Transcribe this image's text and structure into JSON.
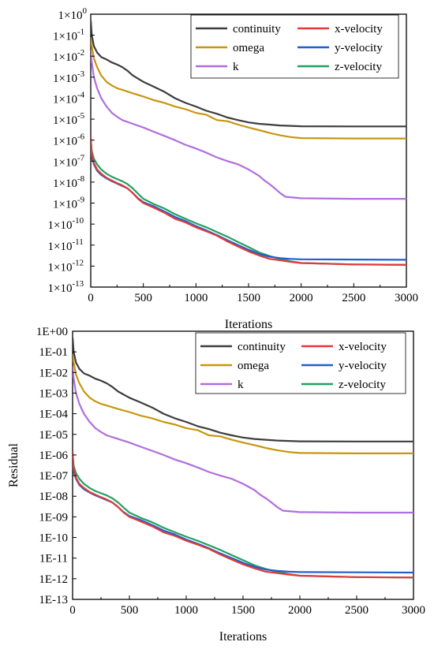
{
  "chart_data": [
    {
      "type": "line",
      "xlabel": "Iterations",
      "ylabel": "",
      "xlim": [
        0,
        3000
      ],
      "ylim_log10": [
        -13,
        0
      ],
      "y_scale": "log",
      "y_tick_format": "power",
      "x_ticks": [
        "0",
        "500",
        "1000",
        "1500",
        "2000",
        "2500",
        "3000"
      ],
      "y_ticks": [
        {
          "base": "1×10",
          "exp": "0"
        },
        {
          "base": "1×10",
          "exp": "-1"
        },
        {
          "base": "1×10",
          "exp": "-2"
        },
        {
          "base": "1×10",
          "exp": "-3"
        },
        {
          "base": "1×10",
          "exp": "-4"
        },
        {
          "base": "1×10",
          "exp": "-5"
        },
        {
          "base": "1×10",
          "exp": "-6"
        },
        {
          "base": "1×10",
          "exp": "-7"
        },
        {
          "base": "1×10",
          "exp": "-8"
        },
        {
          "base": "1×10",
          "exp": "-9"
        },
        {
          "base": "1×10",
          "exp": "-10"
        },
        {
          "base": "1×10",
          "exp": "-11"
        },
        {
          "base": "1×10",
          "exp": "-12"
        },
        {
          "base": "1×10",
          "exp": "-13"
        }
      ],
      "legend": [
        "continuity",
        "x-velocity",
        "omega",
        "y-velocity",
        "k",
        "z-velocity"
      ],
      "legend_position": "top-right",
      "series": [
        {
          "name": "continuity",
          "color": "#3d3d3d",
          "x": [
            0,
            10,
            30,
            60,
            100,
            150,
            200,
            250,
            300,
            350,
            400,
            500,
            600,
            700,
            800,
            900,
            1000,
            1100,
            1200,
            1300,
            1400,
            1500,
            1600,
            1700,
            1800,
            1900,
            2000,
            2500,
            3000
          ],
          "y": [
            "5E-01",
            "1E-01",
            "3E-02",
            "1.5E-02",
            "9E-03",
            "7E-03",
            "5E-03",
            "4E-03",
            "3E-03",
            "2E-03",
            "1.2E-03",
            "6E-04",
            "3.5E-04",
            "2E-04",
            "1E-04",
            "6E-05",
            "4E-05",
            "2.5E-05",
            "1.8E-05",
            "1.2E-05",
            "9E-06",
            "7E-06",
            "6E-06",
            "5.5E-06",
            "5E-06",
            "4.8E-06",
            "4.6E-06",
            "4.5E-06",
            "4.5E-06"
          ]
        },
        {
          "name": "omega",
          "color": "#c8960f",
          "x": [
            0,
            10,
            30,
            60,
            100,
            150,
            200,
            250,
            300,
            400,
            500,
            600,
            700,
            800,
            900,
            1000,
            1100,
            1150,
            1200,
            1300,
            1400,
            1500,
            1600,
            1700,
            1800,
            1900,
            2000,
            2500,
            3000
          ],
          "y": [
            "8E-02",
            "3E-02",
            "8E-03",
            "3E-03",
            "1.2E-03",
            "6E-04",
            "4E-04",
            "3E-04",
            "2.5E-04",
            "1.7E-04",
            "1.2E-04",
            "8E-05",
            "6E-05",
            "4E-05",
            "3E-05",
            "2E-05",
            "1.6E-05",
            "1.2E-05",
            "9E-06",
            "8E-06",
            "5.5E-06",
            "4E-06",
            "3E-06",
            "2.2E-06",
            "1.7E-06",
            "1.4E-06",
            "1.25E-06",
            "1.2E-06",
            "1.2E-06"
          ]
        },
        {
          "name": "k",
          "color": "#b06ee0",
          "x": [
            0,
            10,
            30,
            60,
            100,
            150,
            200,
            250,
            300,
            400,
            500,
            600,
            700,
            800,
            900,
            1000,
            1100,
            1200,
            1300,
            1400,
            1500,
            1600,
            1650,
            1700,
            1750,
            1800,
            1850,
            2000,
            2500,
            3000
          ],
          "y": [
            "2E-02",
            "5E-03",
            "1E-03",
            "3E-04",
            "1E-04",
            "4E-05",
            "2E-05",
            "1.3E-05",
            "9E-06",
            "6E-06",
            "4E-06",
            "2.5E-06",
            "1.6E-06",
            "1E-06",
            "6E-07",
            "4E-07",
            "2.5E-07",
            "1.5E-07",
            "1E-07",
            "7E-08",
            "4E-08",
            "2E-08",
            "1.2E-08",
            "8E-09",
            "5E-09",
            "3E-09",
            "2E-09",
            "1.7E-09",
            "1.6E-09",
            "1.6E-09"
          ]
        },
        {
          "name": "x-velocity",
          "color": "#e03a3a",
          "x": [
            0,
            10,
            30,
            60,
            100,
            150,
            200,
            250,
            300,
            350,
            400,
            450,
            500,
            600,
            700,
            800,
            900,
            1000,
            1100,
            1200,
            1300,
            1400,
            1500,
            1600,
            1700,
            1800,
            1900,
            2000,
            2500,
            3000
          ],
          "y": [
            "1.5E-06",
            "2E-07",
            "8E-08",
            "4E-08",
            "2.5E-08",
            "1.6E-08",
            "1.2E-08",
            "9E-09",
            "7E-09",
            "5E-09",
            "3E-09",
            "1.6E-09",
            "1E-09",
            "6E-10",
            "3.5E-10",
            "1.8E-10",
            "1.2E-10",
            "7E-11",
            "4.5E-11",
            "2.8E-11",
            "1.5E-11",
            "8.5E-12",
            "5E-12",
            "3.2E-12",
            "2.2E-12",
            "1.9E-12",
            "1.6E-12",
            "1.4E-12",
            "1.2E-12",
            "1.15E-12"
          ]
        },
        {
          "name": "y-velocity",
          "color": "#1f5fd0",
          "x": [
            0,
            10,
            30,
            60,
            100,
            150,
            200,
            250,
            300,
            350,
            400,
            450,
            500,
            600,
            700,
            800,
            900,
            1000,
            1100,
            1200,
            1300,
            1400,
            1500,
            1600,
            1700,
            1800,
            1900,
            2000,
            2500,
            3000
          ],
          "y": [
            "1.2E-06",
            "1.5E-07",
            "7E-08",
            "3.5E-08",
            "2.2E-08",
            "1.5E-08",
            "1.1E-08",
            "8.5E-09",
            "6.5E-09",
            "5E-09",
            "3E-09",
            "1.7E-09",
            "1.1E-09",
            "7E-10",
            "4E-10",
            "2.2E-10",
            "1.4E-10",
            "8E-11",
            "5E-11",
            "3E-11",
            "1.7E-11",
            "1E-11",
            "6E-12",
            "3.8E-12",
            "2.8E-12",
            "2.4E-12",
            "2.2E-12",
            "2.1E-12",
            "2.05E-12",
            "2E-12"
          ]
        },
        {
          "name": "z-velocity",
          "color": "#22a060",
          "x": [
            0,
            10,
            30,
            60,
            100,
            150,
            200,
            250,
            300,
            350,
            400,
            450,
            500,
            600,
            700,
            800,
            900,
            1000,
            1100,
            1200,
            1300,
            1400,
            1500,
            1600,
            1700,
            1800,
            1900,
            2000,
            2500,
            3000
          ],
          "y": [
            "1E-06",
            "3E-07",
            "1.3E-07",
            "7E-08",
            "4E-08",
            "2.5E-08",
            "1.8E-08",
            "1.4E-08",
            "1.1E-08",
            "8E-09",
            "5E-09",
            "2.8E-09",
            "1.6E-09",
            "9E-10",
            "5.5E-10",
            "3E-10",
            "1.8E-10",
            "1.1E-10",
            "7E-11",
            "4.2E-11",
            "2.5E-11",
            "1.4E-11",
            "8E-12",
            "4.5E-12",
            "3E-12",
            "2.2E-12",
            "1.7E-12",
            "1.4E-12",
            "1.2E-12",
            "1.15E-12"
          ]
        }
      ]
    },
    {
      "type": "line",
      "xlabel": "Iterations",
      "ylabel": "Residual",
      "xlim": [
        0,
        3000
      ],
      "ylim_log10": [
        -13,
        0
      ],
      "y_scale": "log",
      "y_tick_format": "scientific",
      "x_ticks": [
        "0",
        "500",
        "1000",
        "1500",
        "2000",
        "2500",
        "3000"
      ],
      "y_ticks": [
        "1E+00",
        "1E-01",
        "1E-02",
        "1E-03",
        "1E-04",
        "1E-05",
        "1E-06",
        "1E-07",
        "1E-08",
        "1E-09",
        "1E-10",
        "1E-11",
        "1E-12",
        "1E-13"
      ],
      "legend": [
        "continuity",
        "x-velocity",
        "omega",
        "y-velocity",
        "k",
        "z-velocity"
      ],
      "legend_position": "top-right",
      "series": [
        {
          "name": "continuity",
          "color": "#3d3d3d",
          "x": [
            0,
            10,
            30,
            60,
            100,
            150,
            200,
            250,
            300,
            350,
            400,
            500,
            600,
            700,
            800,
            900,
            1000,
            1100,
            1200,
            1300,
            1400,
            1500,
            1600,
            1700,
            1800,
            1900,
            2000,
            2500,
            3000
          ],
          "y": [
            "5E-01",
            "1E-01",
            "3E-02",
            "1.5E-02",
            "9E-03",
            "7E-03",
            "5E-03",
            "4E-03",
            "3E-03",
            "2E-03",
            "1.2E-03",
            "6E-04",
            "3.5E-04",
            "2E-04",
            "1E-04",
            "6E-05",
            "4E-05",
            "2.5E-05",
            "1.8E-05",
            "1.2E-05",
            "9E-06",
            "7E-06",
            "6E-06",
            "5.5E-06",
            "5E-06",
            "4.8E-06",
            "4.6E-06",
            "4.5E-06",
            "4.5E-06"
          ]
        },
        {
          "name": "omega",
          "color": "#c8960f",
          "x": [
            0,
            10,
            30,
            60,
            100,
            150,
            200,
            250,
            300,
            400,
            500,
            600,
            700,
            800,
            900,
            1000,
            1100,
            1150,
            1200,
            1300,
            1400,
            1500,
            1600,
            1700,
            1800,
            1900,
            2000,
            2500,
            3000
          ],
          "y": [
            "8E-02",
            "3E-02",
            "8E-03",
            "3E-03",
            "1.2E-03",
            "6E-04",
            "4E-04",
            "3E-04",
            "2.5E-04",
            "1.7E-04",
            "1.2E-04",
            "8E-05",
            "6E-05",
            "4E-05",
            "3E-05",
            "2E-05",
            "1.6E-05",
            "1.2E-05",
            "9E-06",
            "8E-06",
            "5.5E-06",
            "4E-06",
            "3E-06",
            "2.2E-06",
            "1.7E-06",
            "1.4E-06",
            "1.25E-06",
            "1.2E-06",
            "1.2E-06"
          ]
        },
        {
          "name": "k",
          "color": "#b06ee0",
          "x": [
            0,
            10,
            30,
            60,
            100,
            150,
            200,
            250,
            300,
            400,
            500,
            600,
            700,
            800,
            900,
            1000,
            1100,
            1200,
            1300,
            1400,
            1500,
            1600,
            1650,
            1700,
            1750,
            1800,
            1850,
            2000,
            2500,
            3000
          ],
          "y": [
            "2E-02",
            "5E-03",
            "1E-03",
            "3E-04",
            "1E-04",
            "4E-05",
            "2E-05",
            "1.3E-05",
            "9E-06",
            "6E-06",
            "4E-06",
            "2.5E-06",
            "1.6E-06",
            "1E-06",
            "6E-07",
            "4E-07",
            "2.5E-07",
            "1.5E-07",
            "1E-07",
            "7E-08",
            "4E-08",
            "2E-08",
            "1.2E-08",
            "8E-09",
            "5E-09",
            "3E-09",
            "2E-09",
            "1.7E-09",
            "1.6E-09",
            "1.6E-09"
          ]
        },
        {
          "name": "x-velocity",
          "color": "#e03a3a",
          "x": [
            0,
            10,
            30,
            60,
            100,
            150,
            200,
            250,
            300,
            350,
            400,
            450,
            500,
            600,
            700,
            800,
            900,
            1000,
            1100,
            1200,
            1300,
            1400,
            1500,
            1600,
            1700,
            1800,
            1900,
            2000,
            2500,
            3000
          ],
          "y": [
            "1.5E-06",
            "2E-07",
            "8E-08",
            "4E-08",
            "2.5E-08",
            "1.6E-08",
            "1.2E-08",
            "9E-09",
            "7E-09",
            "5E-09",
            "3E-09",
            "1.6E-09",
            "1E-09",
            "6E-10",
            "3.5E-10",
            "1.8E-10",
            "1.2E-10",
            "7E-11",
            "4.5E-11",
            "2.8E-11",
            "1.5E-11",
            "8.5E-12",
            "5E-12",
            "3.2E-12",
            "2.2E-12",
            "1.9E-12",
            "1.6E-12",
            "1.4E-12",
            "1.2E-12",
            "1.15E-12"
          ]
        },
        {
          "name": "y-velocity",
          "color": "#1f5fd0",
          "x": [
            0,
            10,
            30,
            60,
            100,
            150,
            200,
            250,
            300,
            350,
            400,
            450,
            500,
            600,
            700,
            800,
            900,
            1000,
            1100,
            1200,
            1300,
            1400,
            1500,
            1600,
            1700,
            1800,
            1900,
            2000,
            2500,
            3000
          ],
          "y": [
            "1.2E-06",
            "1.5E-07",
            "7E-08",
            "3.5E-08",
            "2.2E-08",
            "1.5E-08",
            "1.1E-08",
            "8.5E-09",
            "6.5E-09",
            "5E-09",
            "3E-09",
            "1.7E-09",
            "1.1E-09",
            "7E-10",
            "4E-10",
            "2.2E-10",
            "1.4E-10",
            "8E-11",
            "5E-11",
            "3E-11",
            "1.7E-11",
            "1E-11",
            "6E-12",
            "3.8E-12",
            "2.8E-12",
            "2.4E-12",
            "2.2E-12",
            "2.1E-12",
            "2.05E-12",
            "2E-12"
          ]
        },
        {
          "name": "z-velocity",
          "color": "#22a060",
          "x": [
            0,
            10,
            30,
            60,
            100,
            150,
            200,
            250,
            300,
            350,
            400,
            450,
            500,
            600,
            700,
            800,
            900,
            1000,
            1100,
            1200,
            1300,
            1400,
            1500,
            1600,
            1700,
            1800,
            1900,
            2000,
            2500,
            3000
          ],
          "y": [
            "1E-06",
            "3E-07",
            "1.3E-07",
            "7E-08",
            "4E-08",
            "2.5E-08",
            "1.8E-08",
            "1.4E-08",
            "1.1E-08",
            "8E-09",
            "5E-09",
            "2.8E-09",
            "1.6E-09",
            "9E-10",
            "5.5E-10",
            "3E-10",
            "1.8E-10",
            "1.1E-10",
            "7E-11",
            "4.2E-11",
            "2.5E-11",
            "1.4E-11",
            "8E-12",
            "4.5E-12",
            "3E-12",
            "2.2E-12",
            "1.7E-12",
            "1.4E-12",
            "1.2E-12",
            "1.15E-12"
          ]
        }
      ]
    }
  ]
}
